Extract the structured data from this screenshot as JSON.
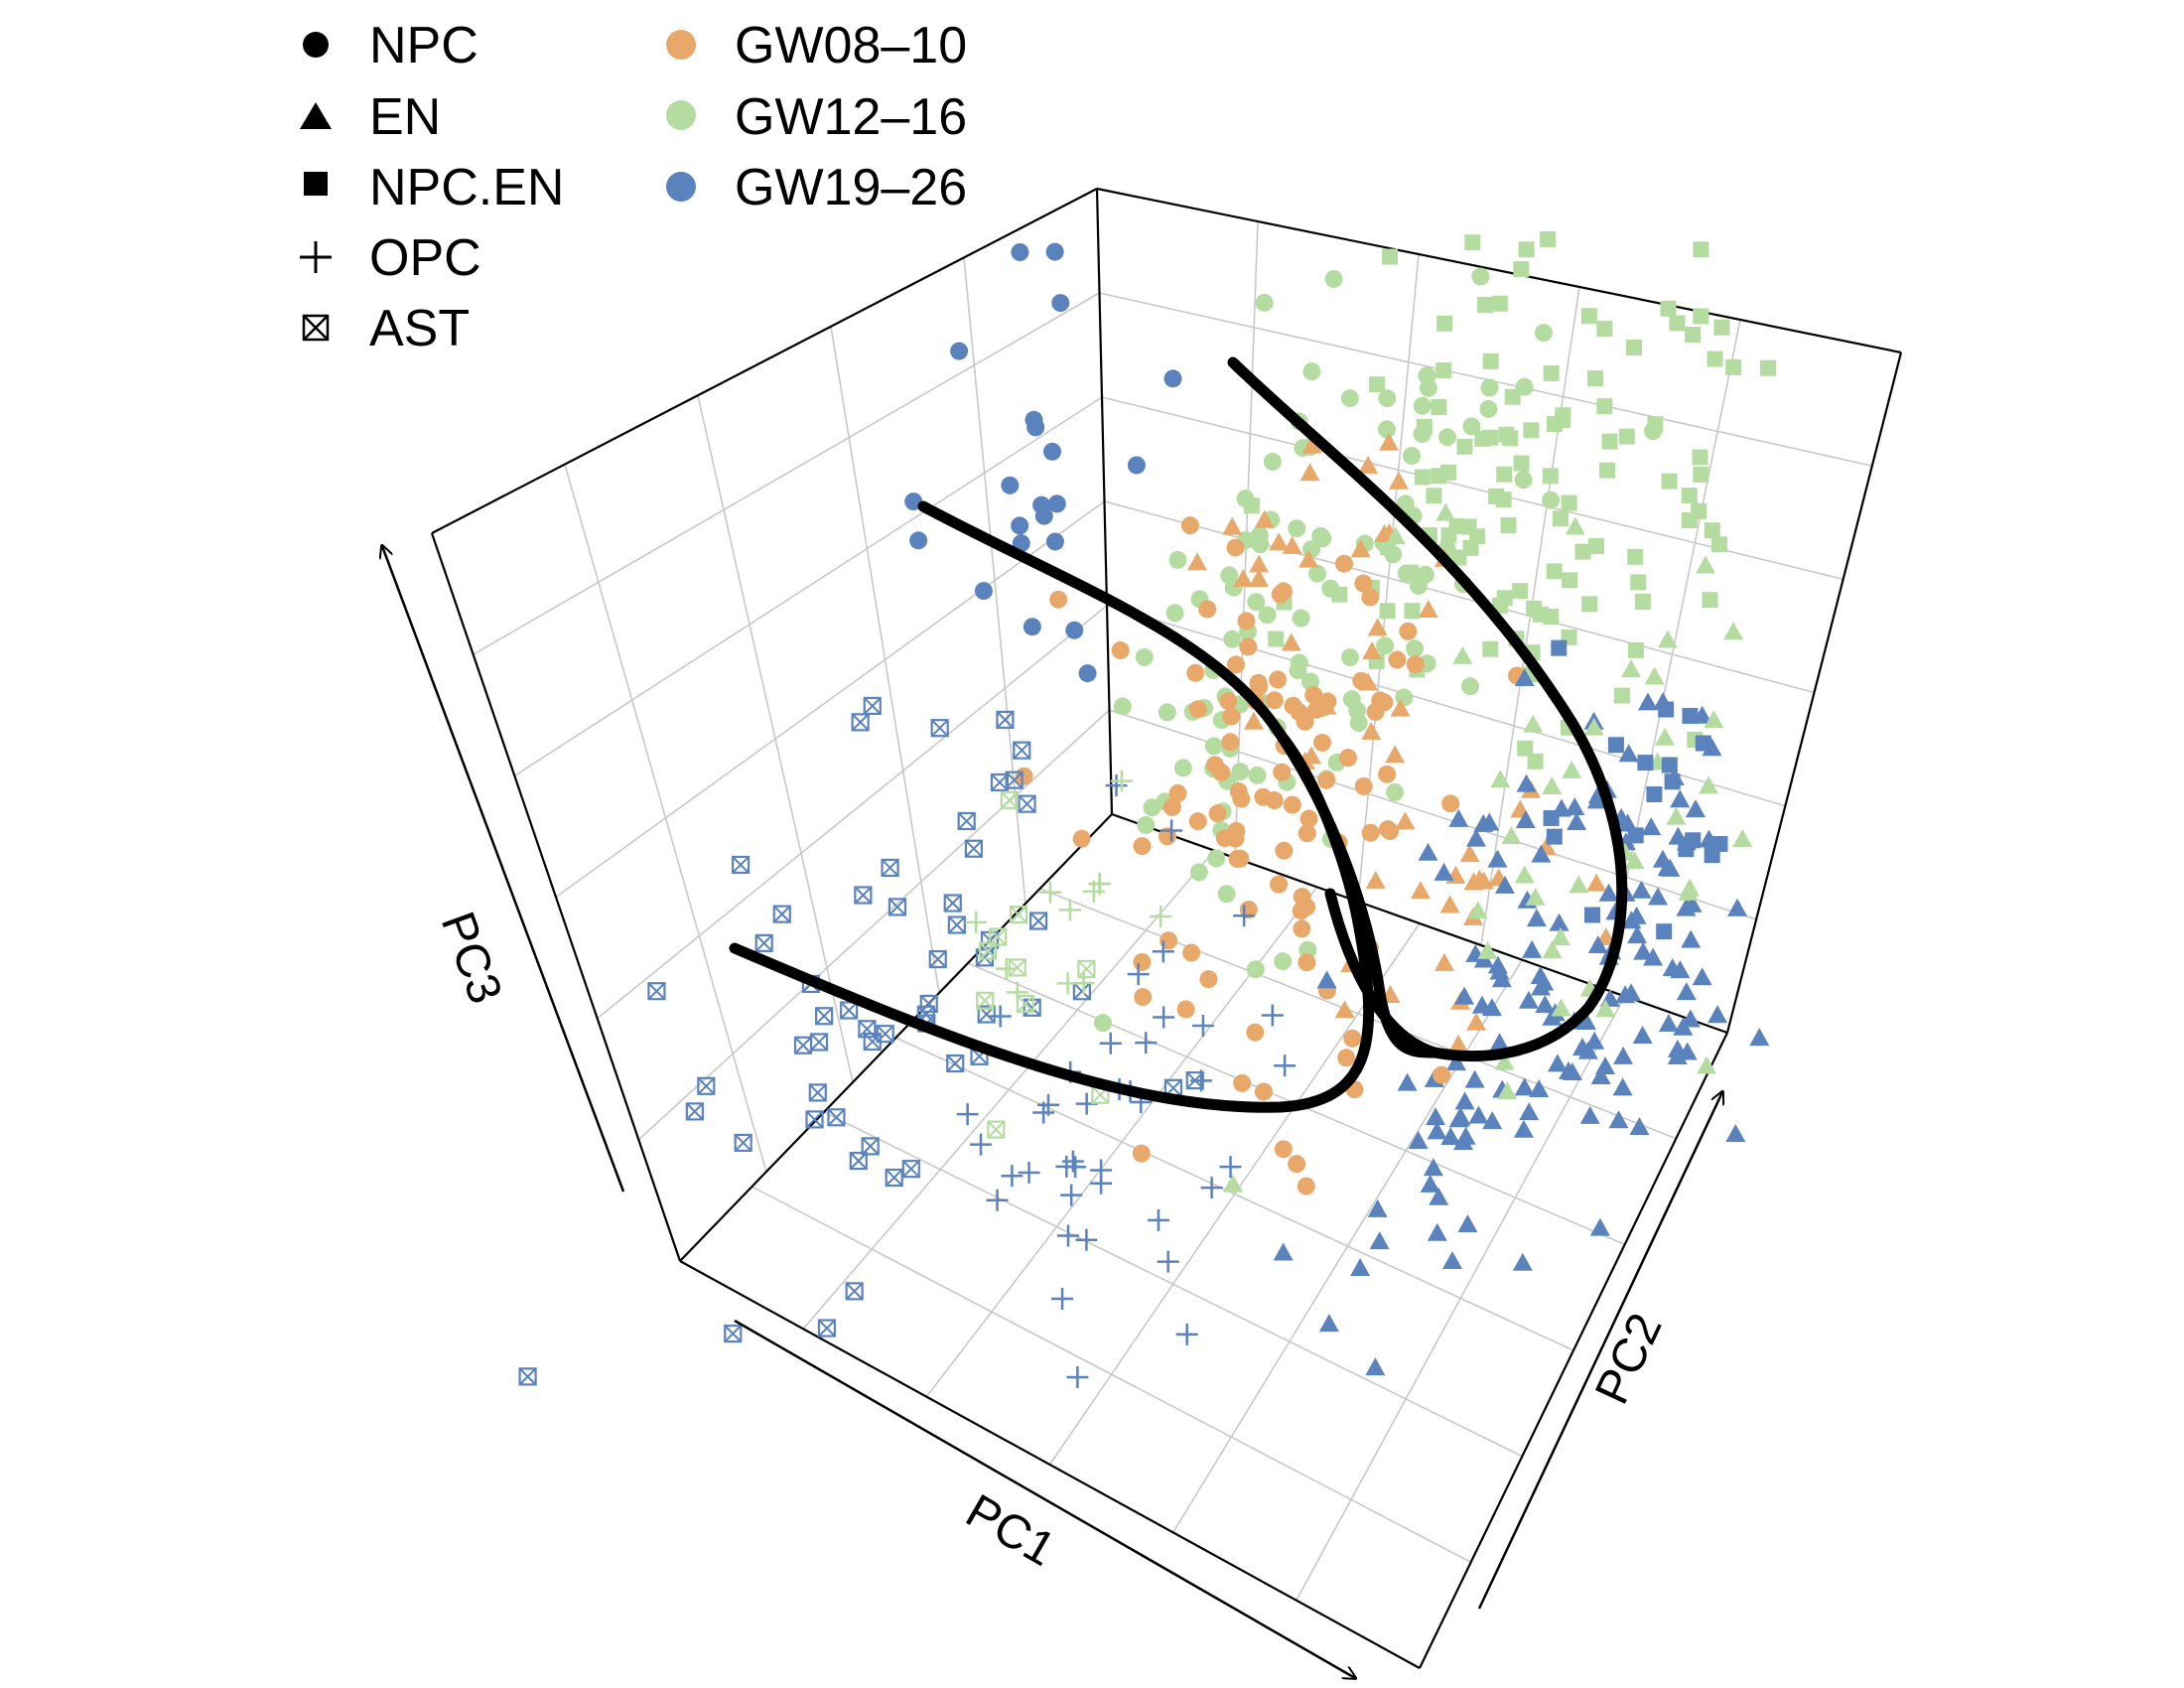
{
  "chart_data": {
    "type": "scatter",
    "projection": "3d",
    "title": "",
    "axes": {
      "x": "PC1",
      "y": "PC2",
      "z": "PC3"
    },
    "grid": true,
    "legend_placement": "top-left",
    "legend": {
      "shapes": [
        {
          "label": "NPC",
          "marker": "circle"
        },
        {
          "label": "EN",
          "marker": "triangle"
        },
        {
          "label": "NPC.EN",
          "marker": "square"
        },
        {
          "label": "OPC",
          "marker": "plus"
        },
        {
          "label": "AST",
          "marker": "square-x"
        }
      ],
      "colors": [
        {
          "label": "GW08–10",
          "color": "#E8A86A"
        },
        {
          "label": "GW12–16",
          "color": "#B5DCA0"
        },
        {
          "label": "GW19–26",
          "color": "#5A82BD"
        }
      ]
    },
    "trajectories": 3,
    "trajectory_color": "#000000"
  }
}
